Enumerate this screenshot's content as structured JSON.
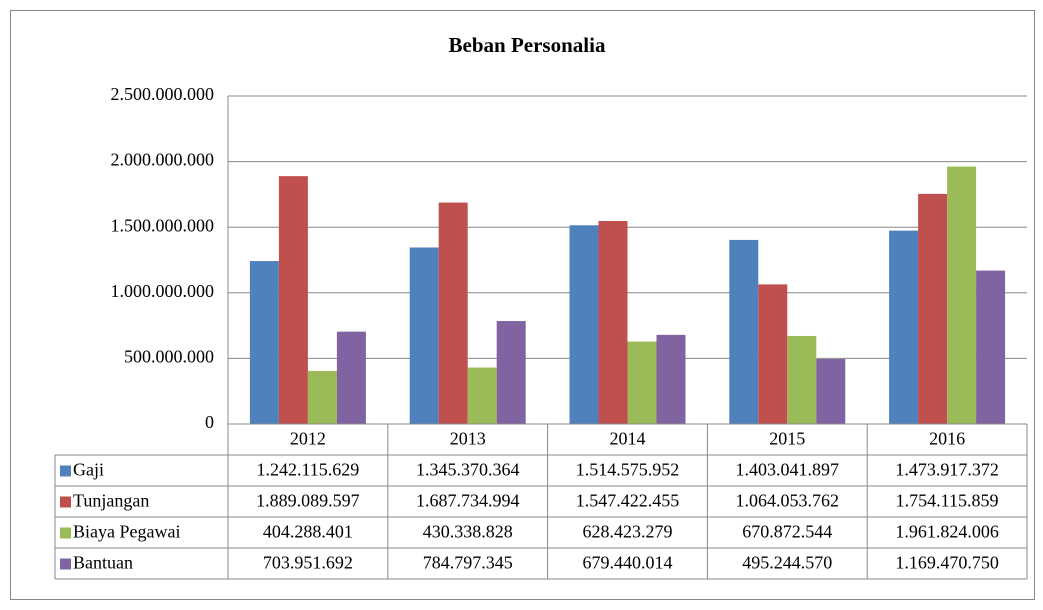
{
  "chart_data": {
    "type": "bar",
    "title": "Beban Personalia",
    "categories": [
      "2012",
      "2013",
      "2014",
      "2015",
      "2016"
    ],
    "series": [
      {
        "name": "Gaji",
        "color": "#4f81bd",
        "values": [
          1242115629,
          1345370364,
          1514575952,
          1403041897,
          1473917372
        ],
        "value_labels": [
          "1.242.115.629",
          "1.345.370.364",
          "1.514.575.952",
          "1.403.041.897",
          "1.473.917.372"
        ]
      },
      {
        "name": "Tunjangan",
        "color": "#c0504d",
        "values": [
          1889089597,
          1687734994,
          1547422455,
          1064053762,
          1754115859
        ],
        "value_labels": [
          "1.889.089.597",
          "1.687.734.994",
          "1.547.422.455",
          "1.064.053.762",
          "1.754.115.859"
        ]
      },
      {
        "name": "Biaya Pegawai",
        "color": "#9bbb59",
        "values": [
          404288401,
          430338828,
          628423279,
          670872544,
          1961824006
        ],
        "value_labels": [
          "404.288.401",
          "430.338.828",
          "628.423.279",
          "670.872.544",
          "1.961.824.006"
        ]
      },
      {
        "name": "Bantuan",
        "color": "#8064a2",
        "values": [
          703951692,
          784797345,
          679440014,
          495244570,
          1169470750
        ],
        "value_labels": [
          "703.951.692",
          "784.797.345",
          "679.440.014",
          "495.244.570",
          "1.169.470.750"
        ]
      }
    ],
    "ylim": [
      0,
      2500000000
    ],
    "yticks": [
      0,
      {
        "value": 500000000,
        "label": "500.000.000"
      },
      {
        "value": 1000000000,
        "label": "1.000.000.000"
      },
      {
        "value": 1500000000,
        "label": "1.500.000.000"
      },
      {
        "value": 2000000000,
        "label": "2.000.000.000"
      },
      {
        "value": 2500000000,
        "label": "2.500.000.000"
      }
    ],
    "grid": true,
    "legend": "table"
  }
}
